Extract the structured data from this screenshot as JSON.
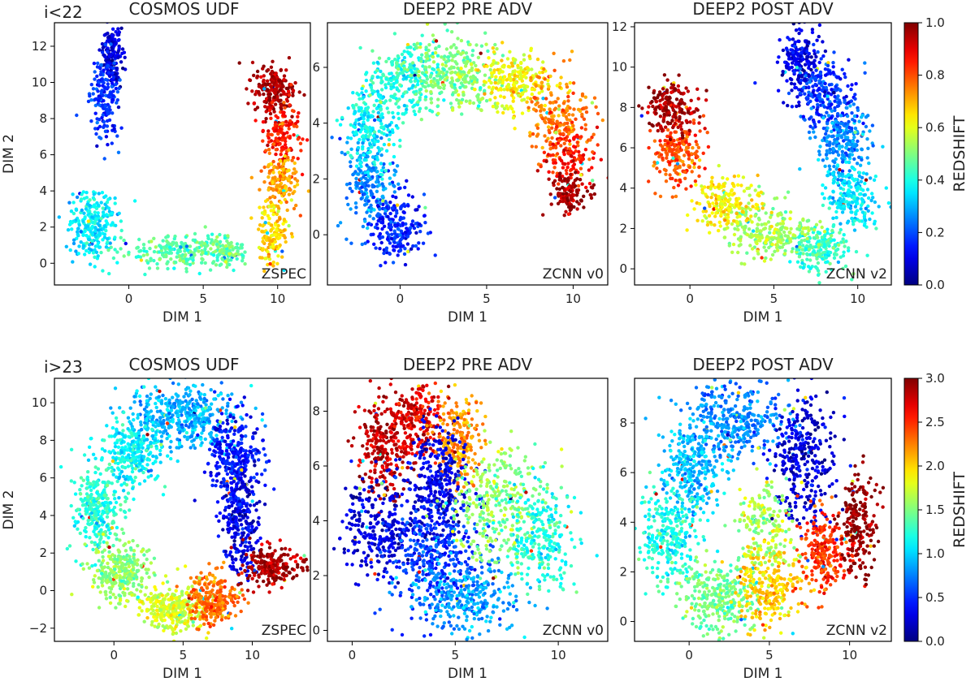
{
  "figure": {
    "rows": [
      {
        "tag": "i<22",
        "colorbar": {
          "label": "REDSHIFT",
          "min": 0.0,
          "max": 1.0,
          "ticks": [
            "0.0",
            "0.2",
            "0.4",
            "0.6",
            "0.8",
            "1.0"
          ],
          "tick_values": [
            0,
            0.2,
            0.4,
            0.6,
            0.8,
            1.0
          ]
        }
      },
      {
        "tag": "i>23",
        "colorbar": {
          "label": "REDSHIFT",
          "min": 0.0,
          "max": 3.0,
          "ticks": [
            "0.0",
            "0.5",
            "1.0",
            "1.5",
            "2.0",
            "2.5",
            "3.0"
          ],
          "tick_values": [
            0,
            0.5,
            1,
            1.5,
            2,
            2.5,
            3
          ]
        }
      }
    ],
    "colormap": "jet"
  },
  "chart_data": [
    {
      "type": "scatter",
      "row": 0,
      "col": 0,
      "title": "COSMOS UDF",
      "corner_label": "ZSPEC",
      "xlabel": "DIM 1",
      "ylabel": "DIM 2",
      "xlim": [
        -5,
        12.2
      ],
      "ylim": [
        -1.2,
        13.3
      ],
      "xticks": [
        0,
        5,
        10
      ],
      "yticks": [
        0,
        2,
        4,
        6,
        8,
        10,
        12
      ],
      "clusters": [
        {
          "x": -1.1,
          "y": 11.6,
          "sx": 0.3,
          "sy": 0.8,
          "z": 0.08,
          "n": 160
        },
        {
          "x": -1.7,
          "y": 9.2,
          "sx": 0.45,
          "sy": 1.2,
          "z": 0.17,
          "n": 180
        },
        {
          "x": -2.4,
          "y": 2.2,
          "sx": 0.8,
          "sy": 1.0,
          "z": 0.36,
          "n": 240
        },
        {
          "x": 3.5,
          "y": 0.7,
          "sx": 1.9,
          "sy": 0.45,
          "z": 0.46,
          "n": 230
        },
        {
          "x": 6.5,
          "y": 0.6,
          "sx": 0.7,
          "sy": 0.35,
          "z": 0.48,
          "n": 90
        },
        {
          "x": 9.8,
          "y": 9.6,
          "sx": 0.7,
          "sy": 0.7,
          "z": 0.96,
          "n": 200
        },
        {
          "x": 10.3,
          "y": 7.2,
          "sx": 0.6,
          "sy": 0.9,
          "z": 0.85,
          "n": 150
        },
        {
          "x": 10.1,
          "y": 4.5,
          "sx": 0.6,
          "sy": 0.9,
          "z": 0.72,
          "n": 150
        },
        {
          "x": 9.7,
          "y": 1.7,
          "sx": 0.5,
          "sy": 0.9,
          "z": 0.66,
          "n": 140
        }
      ]
    },
    {
      "type": "scatter",
      "row": 0,
      "col": 1,
      "title": "DEEP2 PRE ADV",
      "corner_label": "ZCNN v0",
      "xlabel": "DIM 1",
      "ylabel": "",
      "xlim": [
        -4.2,
        12.0
      ],
      "ylim": [
        -1.8,
        7.6
      ],
      "xticks": [
        0,
        5,
        10
      ],
      "yticks": [
        0,
        2,
        4,
        6
      ],
      "clusters": [
        {
          "x": -0.2,
          "y": 0.3,
          "sx": 0.7,
          "sy": 0.6,
          "z": 0.15,
          "n": 220
        },
        {
          "x": -1.9,
          "y": 1.9,
          "sx": 0.7,
          "sy": 0.8,
          "z": 0.26,
          "n": 200
        },
        {
          "x": -1.6,
          "y": 4.0,
          "sx": 0.8,
          "sy": 0.8,
          "z": 0.37,
          "n": 220
        },
        {
          "x": 0.4,
          "y": 5.6,
          "sx": 1.1,
          "sy": 0.6,
          "z": 0.41,
          "n": 240
        },
        {
          "x": 3.2,
          "y": 5.8,
          "sx": 1.3,
          "sy": 0.7,
          "z": 0.5,
          "n": 280
        },
        {
          "x": 6.5,
          "y": 5.5,
          "sx": 1.0,
          "sy": 0.6,
          "z": 0.62,
          "n": 220
        },
        {
          "x": 9.2,
          "y": 4.4,
          "sx": 0.9,
          "sy": 0.8,
          "z": 0.75,
          "n": 200
        },
        {
          "x": 9.8,
          "y": 2.9,
          "sx": 0.7,
          "sy": 0.5,
          "z": 0.85,
          "n": 120
        },
        {
          "x": 9.7,
          "y": 1.5,
          "sx": 0.6,
          "sy": 0.4,
          "z": 0.97,
          "n": 130
        }
      ]
    },
    {
      "type": "scatter",
      "row": 0,
      "col": 2,
      "title": "DEEP2 POST ADV",
      "corner_label": "ZCNN v2",
      "xlabel": "DIM 1",
      "ylabel": "",
      "xlim": [
        -3.3,
        12.0
      ],
      "ylim": [
        -0.8,
        12.2
      ],
      "xticks": [
        0,
        5,
        10
      ],
      "yticks": [
        0,
        2,
        4,
        6,
        8,
        10,
        12
      ],
      "clusters": [
        {
          "x": 6.6,
          "y": 10.3,
          "sx": 0.6,
          "sy": 0.8,
          "z": 0.1,
          "n": 200
        },
        {
          "x": 8.2,
          "y": 8.6,
          "sx": 0.9,
          "sy": 0.8,
          "z": 0.17,
          "n": 220
        },
        {
          "x": 9.2,
          "y": 6.3,
          "sx": 0.8,
          "sy": 0.9,
          "z": 0.26,
          "n": 220
        },
        {
          "x": 9.6,
          "y": 3.6,
          "sx": 0.8,
          "sy": 0.8,
          "z": 0.35,
          "n": 200
        },
        {
          "x": 7.6,
          "y": 1.0,
          "sx": 0.9,
          "sy": 0.6,
          "z": 0.43,
          "n": 200
        },
        {
          "x": 4.8,
          "y": 1.9,
          "sx": 1.3,
          "sy": 0.7,
          "z": 0.53,
          "n": 240
        },
        {
          "x": 2.0,
          "y": 3.3,
          "sx": 0.9,
          "sy": 0.7,
          "z": 0.64,
          "n": 200
        },
        {
          "x": -0.7,
          "y": 5.8,
          "sx": 0.8,
          "sy": 0.8,
          "z": 0.8,
          "n": 200
        },
        {
          "x": -1.0,
          "y": 8.0,
          "sx": 0.8,
          "sy": 0.6,
          "z": 0.96,
          "n": 180
        }
      ]
    },
    {
      "type": "scatter",
      "row": 1,
      "col": 0,
      "title": "COSMOS UDF",
      "corner_label": "ZSPEC",
      "xlabel": "DIM 1",
      "ylabel": "DIM 2",
      "xlim": [
        -4.3,
        14.2
      ],
      "ylim": [
        -2.7,
        11.3
      ],
      "xticks": [
        0,
        5,
        10
      ],
      "yticks": [
        -2,
        0,
        2,
        4,
        6,
        8,
        10
      ],
      "clusters": [
        {
          "x": 5.0,
          "y": 9.3,
          "sx": 2.0,
          "sy": 0.8,
          "z": 0.9,
          "n": 420
        },
        {
          "x": 1.3,
          "y": 7.4,
          "sx": 1.0,
          "sy": 0.9,
          "z": 1.1,
          "n": 280
        },
        {
          "x": 8.7,
          "y": 7.3,
          "sx": 0.9,
          "sy": 1.1,
          "z": 0.4,
          "n": 280
        },
        {
          "x": -1.2,
          "y": 4.4,
          "sx": 0.9,
          "sy": 1.1,
          "z": 1.25,
          "n": 300
        },
        {
          "x": 9.2,
          "y": 3.8,
          "sx": 0.7,
          "sy": 1.3,
          "z": 0.3,
          "n": 280
        },
        {
          "x": 0.6,
          "y": 1.0,
          "sx": 1.1,
          "sy": 0.8,
          "z": 1.55,
          "n": 300
        },
        {
          "x": 4.2,
          "y": -1.0,
          "sx": 1.1,
          "sy": 0.6,
          "z": 1.75,
          "n": 300
        },
        {
          "x": 7.2,
          "y": -0.4,
          "sx": 0.9,
          "sy": 0.7,
          "z": 2.3,
          "n": 260
        },
        {
          "x": 11.4,
          "y": 1.3,
          "sx": 1.0,
          "sy": 0.5,
          "z": 2.9,
          "n": 220
        }
      ]
    },
    {
      "type": "scatter",
      "row": 1,
      "col": 1,
      "title": "DEEP2 PRE ADV",
      "corner_label": "ZCNN v0",
      "xlabel": "DIM 1",
      "ylabel": "",
      "xlim": [
        -1.2,
        12.4
      ],
      "ylim": [
        -0.4,
        9.2
      ],
      "xticks": [
        0,
        5,
        10
      ],
      "yticks": [
        0,
        2,
        4,
        6,
        8
      ],
      "clusters": [
        {
          "x": 1.6,
          "y": 6.8,
          "sx": 0.7,
          "sy": 0.9,
          "z": 2.8,
          "n": 260
        },
        {
          "x": 3.2,
          "y": 7.7,
          "sx": 0.6,
          "sy": 0.6,
          "z": 2.7,
          "n": 200
        },
        {
          "x": 5.2,
          "y": 7.0,
          "sx": 0.6,
          "sy": 0.9,
          "z": 2.2,
          "n": 220
        },
        {
          "x": 4.2,
          "y": 5.3,
          "sx": 0.7,
          "sy": 1.2,
          "z": 0.3,
          "n": 320
        },
        {
          "x": 1.5,
          "y": 3.8,
          "sx": 1.0,
          "sy": 0.9,
          "z": 0.25,
          "n": 300
        },
        {
          "x": 4.0,
          "y": 2.6,
          "sx": 1.2,
          "sy": 1.0,
          "z": 0.55,
          "n": 350
        },
        {
          "x": 7.2,
          "y": 4.6,
          "sx": 1.2,
          "sy": 1.0,
          "z": 1.55,
          "n": 320
        },
        {
          "x": 9.2,
          "y": 3.4,
          "sx": 0.9,
          "sy": 1.0,
          "z": 1.2,
          "n": 260
        },
        {
          "x": 5.5,
          "y": 1.2,
          "sx": 1.2,
          "sy": 0.7,
          "z": 0.85,
          "n": 260
        }
      ]
    },
    {
      "type": "scatter",
      "row": 1,
      "col": 2,
      "title": "DEEP2 POST ADV",
      "corner_label": "ZCNN v2",
      "xlabel": "DIM 1",
      "ylabel": "",
      "xlim": [
        -3.4,
        12.6
      ],
      "ylim": [
        -0.8,
        9.8
      ],
      "xticks": [
        0,
        5,
        10
      ],
      "yticks": [
        0,
        2,
        4,
        6,
        8
      ],
      "clusters": [
        {
          "x": 3.0,
          "y": 8.2,
          "sx": 1.4,
          "sy": 0.8,
          "z": 0.75,
          "n": 320
        },
        {
          "x": 0.2,
          "y": 6.2,
          "sx": 1.0,
          "sy": 1.0,
          "z": 0.95,
          "n": 300
        },
        {
          "x": 7.2,
          "y": 6.6,
          "sx": 1.0,
          "sy": 1.2,
          "z": 0.25,
          "n": 320
        },
        {
          "x": -1.2,
          "y": 3.5,
          "sx": 1.0,
          "sy": 1.0,
          "z": 1.2,
          "n": 280
        },
        {
          "x": 1.8,
          "y": 1.0,
          "sx": 1.2,
          "sy": 0.8,
          "z": 1.45,
          "n": 300
        },
        {
          "x": 5.0,
          "y": 1.6,
          "sx": 1.0,
          "sy": 0.9,
          "z": 2.0,
          "n": 280
        },
        {
          "x": 8.4,
          "y": 2.8,
          "sx": 0.8,
          "sy": 0.8,
          "z": 2.5,
          "n": 240
        },
        {
          "x": 10.6,
          "y": 4.0,
          "sx": 0.6,
          "sy": 1.0,
          "z": 2.95,
          "n": 200
        },
        {
          "x": 4.8,
          "y": 4.0,
          "sx": 0.9,
          "sy": 0.8,
          "z": 1.6,
          "n": 160
        }
      ]
    }
  ]
}
